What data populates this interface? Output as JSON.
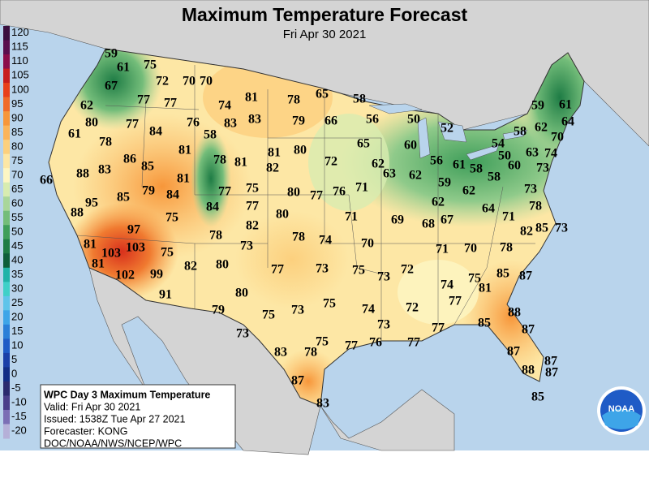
{
  "header": {
    "title": "Maximum Temperature Forecast",
    "subtitle": "Fri Apr 30 2021"
  },
  "legend": {
    "values": [
      120,
      115,
      110,
      105,
      100,
      95,
      90,
      85,
      80,
      75,
      70,
      65,
      60,
      55,
      50,
      45,
      40,
      35,
      30,
      25,
      20,
      15,
      10,
      5,
      0,
      -5,
      -10,
      -15,
      -20
    ],
    "colors": [
      "#3b0f3e",
      "#5a0f4e",
      "#8b0d4a",
      "#c81e1e",
      "#e8401c",
      "#f06a2a",
      "#f7963a",
      "#fbb45a",
      "#fcd07e",
      "#fde7a5",
      "#fdf6c3",
      "#d8ecb0",
      "#a9d69a",
      "#74bd7a",
      "#3f9e5a",
      "#1e7c45",
      "#0e5e3a",
      "#21b3a8",
      "#3fd0c8",
      "#5fc4ea",
      "#3ea5e8",
      "#2a7fd8",
      "#1f5bc6",
      "#1a3fa8",
      "#122e86",
      "#2a2a6e",
      "#4a3f8a",
      "#7b6fb5",
      "#b5b0d8"
    ]
  },
  "temperatures": [
    59,
    61,
    75,
    72,
    70,
    70,
    67,
    77,
    77,
    74,
    81,
    78,
    65,
    58,
    62,
    80,
    77,
    84,
    76,
    83,
    83,
    79,
    66,
    56,
    50,
    52,
    59,
    61,
    61,
    78,
    58,
    81,
    65,
    60,
    54,
    50,
    58,
    62,
    70,
    64,
    86,
    85,
    78,
    81,
    81,
    80,
    72,
    62,
    56,
    61,
    58,
    63,
    74,
    66,
    88,
    83,
    81,
    82,
    63,
    62,
    59,
    62,
    58,
    60,
    73,
    95,
    85,
    79,
    84,
    77,
    75,
    77,
    80,
    77,
    76,
    71,
    73,
    88,
    84,
    80,
    71,
    69,
    68,
    67,
    62,
    64,
    71,
    78,
    97,
    75,
    82,
    73,
    81,
    103,
    78,
    73,
    78,
    74,
    70,
    71,
    70,
    78,
    82,
    85,
    103,
    75,
    81,
    82,
    80,
    77,
    73,
    75,
    73,
    72,
    85,
    87,
    102,
    99,
    74,
    75,
    81,
    91,
    80,
    77,
    79,
    75,
    73,
    75,
    74,
    72,
    88,
    73,
    77,
    85,
    87,
    73,
    75,
    76,
    77,
    77,
    83,
    78,
    87,
    87,
    88,
    87,
    87,
    85,
    83
  ],
  "info_box": {
    "lines": [
      "WPC Day 3 Maximum Temperature",
      "Valid: Fri Apr 30 2021",
      "Issued: 1538Z Tue Apr 27 2021",
      "Forecaster: KONG",
      "DOC/NOAA/NWS/NCEP/WPC"
    ]
  },
  "logo": "NOAA"
}
